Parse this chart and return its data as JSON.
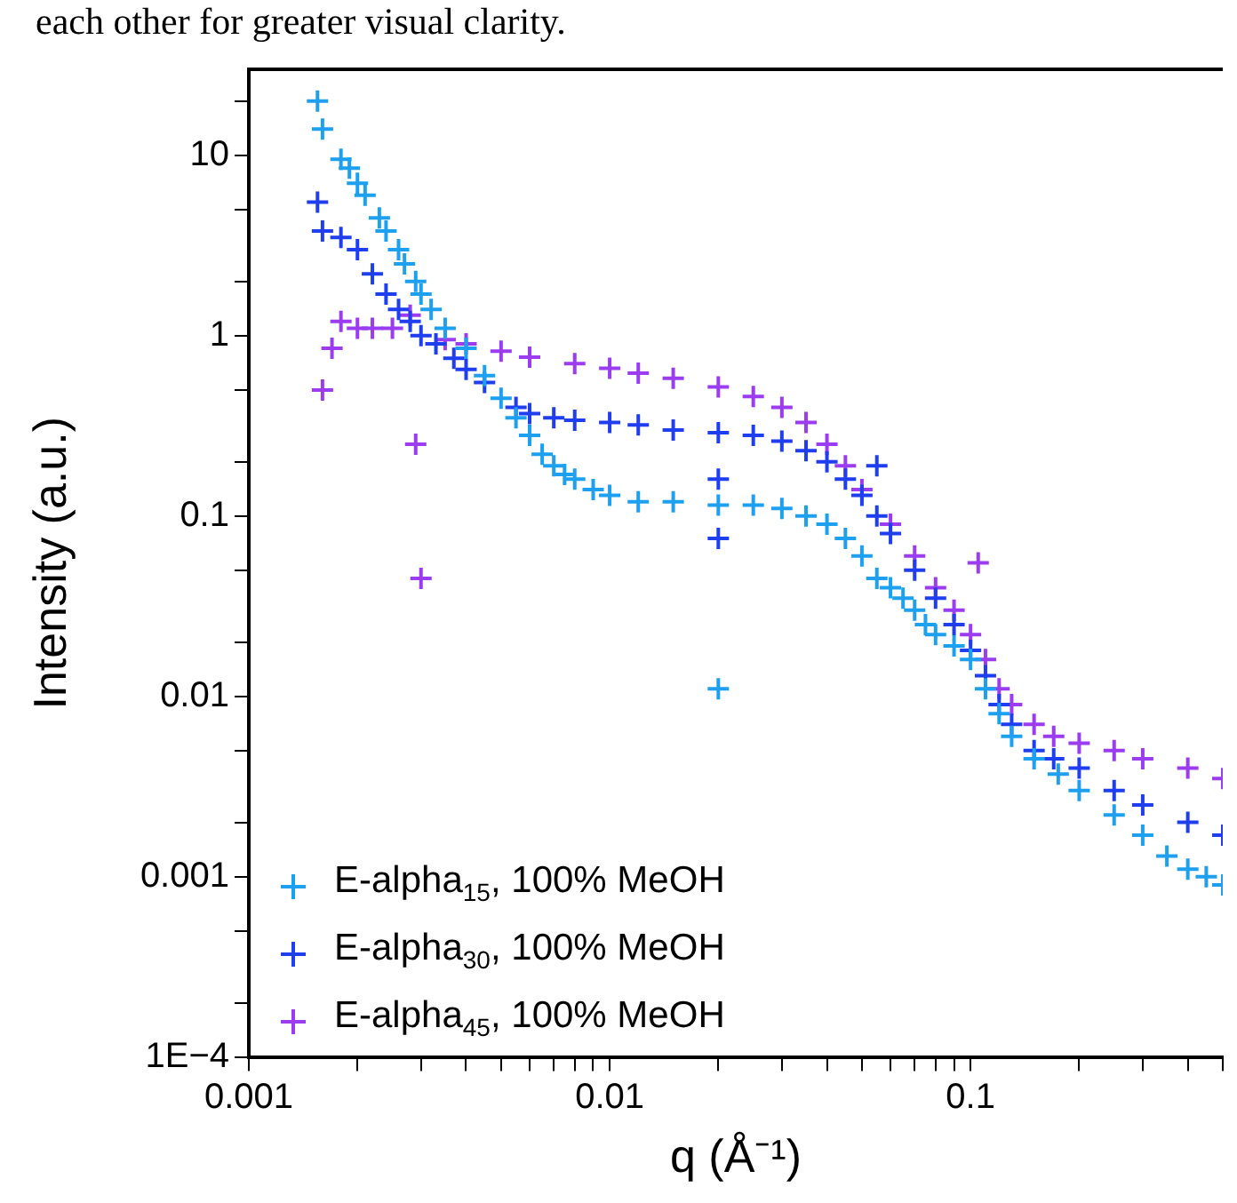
{
  "chart_data": {
    "type": "scatter",
    "annotations": [
      "each other for greater visual clarity."
    ],
    "xlabel": "q (Å⁻¹)",
    "ylabel": "Intensity (a.u.)",
    "log": "xy",
    "grid": false,
    "legend": "bottom left",
    "marker": "cross",
    "xlim": [
      0.001,
      0.5
    ],
    "ylim": [
      0.0001,
      30
    ],
    "xticks": [
      0.001,
      {
        "value": 0.002,
        "label": null
      },
      {
        "value": 0.003,
        "label": null
      },
      {
        "value": 0.004,
        "label": null
      },
      {
        "value": 0.005,
        "label": null
      },
      {
        "value": 0.006,
        "label": null
      },
      {
        "value": 0.007,
        "label": null
      },
      {
        "value": 0.008,
        "label": null
      },
      {
        "value": 0.009,
        "label": null
      },
      0.01,
      {
        "value": 0.02,
        "label": null
      },
      {
        "value": 0.03,
        "label": null
      },
      {
        "value": 0.04,
        "label": null
      },
      {
        "value": 0.05,
        "label": null
      },
      {
        "value": 0.06,
        "label": null
      },
      {
        "value": 0.07,
        "label": null
      },
      {
        "value": 0.08,
        "label": null
      },
      {
        "value": 0.09,
        "label": null
      },
      0.1,
      {
        "value": 0.2,
        "label": null
      },
      {
        "value": 0.3,
        "label": null
      },
      {
        "value": 0.4,
        "label": null
      },
      {
        "value": 0.5,
        "label": null
      }
    ],
    "yticks": [
      {
        "value": 0.0001,
        "label": "1E−4"
      },
      {
        "value": 0.0002,
        "label": null
      },
      {
        "value": 0.0005,
        "label": null
      },
      0.001,
      {
        "value": 0.002,
        "label": null
      },
      {
        "value": 0.005,
        "label": null
      },
      0.01,
      {
        "value": 0.02,
        "label": null
      },
      {
        "value": 0.05,
        "label": null
      },
      0.1,
      {
        "value": 0.2,
        "label": null
      },
      {
        "value": 0.5,
        "label": null
      },
      1,
      {
        "value": 2,
        "label": null
      },
      {
        "value": 5,
        "label": null
      },
      10,
      {
        "value": 20,
        "label": null
      }
    ],
    "series": [
      {
        "name": "E-alpha$_{15}$, 100% MeOH",
        "color": "#1ea0f0",
        "x": [
          0.00155,
          0.0016,
          0.0018,
          0.0019,
          0.002,
          0.0021,
          0.0023,
          0.0024,
          0.0026,
          0.0027,
          0.0029,
          0.003,
          0.0032,
          0.0035,
          0.004,
          0.0045,
          0.005,
          0.0055,
          0.006,
          0.0065,
          0.007,
          0.0075,
          0.008,
          0.009,
          0.01,
          0.012,
          0.015,
          0.02,
          0.02,
          0.025,
          0.03,
          0.035,
          0.04,
          0.045,
          0.05,
          0.055,
          0.06,
          0.065,
          0.07,
          0.075,
          0.08,
          0.09,
          0.1,
          0.11,
          0.12,
          0.13,
          0.15,
          0.175,
          0.2,
          0.25,
          0.3,
          0.35,
          0.4,
          0.45,
          0.5
        ],
        "values": [
          20,
          14,
          9.5,
          8.5,
          7,
          6,
          4.5,
          3.8,
          3,
          2.5,
          2,
          1.7,
          1.4,
          1.1,
          0.85,
          0.6,
          0.45,
          0.35,
          0.28,
          0.22,
          0.19,
          0.17,
          0.16,
          0.14,
          0.13,
          0.12,
          0.12,
          0.115,
          0.011,
          0.115,
          0.11,
          0.1,
          0.09,
          0.075,
          0.06,
          0.045,
          0.04,
          0.035,
          0.03,
          0.025,
          0.022,
          0.019,
          0.016,
          0.011,
          0.008,
          0.006,
          0.0045,
          0.0037,
          0.003,
          0.0022,
          0.0017,
          0.0013,
          0.0011,
          0.001,
          0.0009
        ]
      },
      {
        "name": "E-alpha$_{30}$, 100% MeOH",
        "color": "#1f3ef0",
        "x": [
          0.00155,
          0.0016,
          0.0018,
          0.002,
          0.0022,
          0.0024,
          0.0026,
          0.0028,
          0.003,
          0.0033,
          0.0037,
          0.004,
          0.0045,
          0.0055,
          0.006,
          0.007,
          0.008,
          0.01,
          0.012,
          0.015,
          0.02,
          0.02,
          0.02,
          0.025,
          0.03,
          0.035,
          0.04,
          0.045,
          0.05,
          0.055,
          0.055,
          0.06,
          0.07,
          0.08,
          0.09,
          0.1,
          0.11,
          0.12,
          0.13,
          0.15,
          0.17,
          0.2,
          0.25,
          0.3,
          0.4,
          0.5
        ],
        "values": [
          5.5,
          3.8,
          3.5,
          3,
          2.2,
          1.7,
          1.4,
          1.2,
          1,
          0.9,
          0.75,
          0.65,
          0.55,
          0.4,
          0.37,
          0.35,
          0.34,
          0.33,
          0.32,
          0.3,
          0.29,
          0.16,
          0.075,
          0.28,
          0.26,
          0.23,
          0.2,
          0.16,
          0.13,
          0.19,
          0.1,
          0.08,
          0.05,
          0.035,
          0.025,
          0.018,
          0.013,
          0.009,
          0.007,
          0.005,
          0.0045,
          0.004,
          0.003,
          0.0025,
          0.002,
          0.0017
        ]
      },
      {
        "name": "E-alpha$_{45}$, 100% MeOH",
        "color": "#9b3cf0",
        "x": [
          0.0016,
          0.0017,
          0.0018,
          0.002,
          0.0022,
          0.0025,
          0.0028,
          0.0029,
          0.003,
          0.0035,
          0.004,
          0.005,
          0.006,
          0.008,
          0.01,
          0.012,
          0.015,
          0.02,
          0.025,
          0.03,
          0.035,
          0.04,
          0.045,
          0.05,
          0.06,
          0.07,
          0.08,
          0.09,
          0.1,
          0.105,
          0.11,
          0.12,
          0.13,
          0.15,
          0.17,
          0.2,
          0.25,
          0.3,
          0.4,
          0.5
        ],
        "values": [
          0.5,
          0.85,
          1.2,
          1.1,
          1.1,
          1.1,
          1.3,
          0.25,
          0.045,
          0.95,
          0.9,
          0.82,
          0.76,
          0.7,
          0.66,
          0.62,
          0.58,
          0.52,
          0.46,
          0.4,
          0.33,
          0.25,
          0.19,
          0.14,
          0.09,
          0.06,
          0.04,
          0.03,
          0.022,
          0.055,
          0.016,
          0.011,
          0.009,
          0.007,
          0.006,
          0.0055,
          0.005,
          0.0045,
          0.004,
          0.0035
        ]
      }
    ]
  }
}
